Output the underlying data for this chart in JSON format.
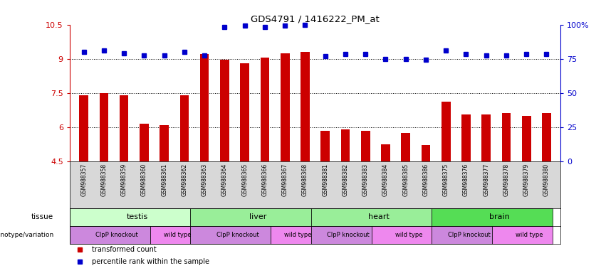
{
  "title": "GDS4791 / 1416222_PM_at",
  "samples": [
    "GSM988357",
    "GSM988358",
    "GSM988359",
    "GSM988360",
    "GSM988361",
    "GSM988362",
    "GSM988363",
    "GSM988364",
    "GSM988365",
    "GSM988366",
    "GSM988367",
    "GSM988368",
    "GSM988381",
    "GSM988382",
    "GSM988383",
    "GSM988384",
    "GSM988385",
    "GSM988386",
    "GSM988375",
    "GSM988376",
    "GSM988377",
    "GSM988378",
    "GSM988379",
    "GSM988380"
  ],
  "bar_values": [
    7.4,
    7.5,
    7.4,
    6.15,
    6.1,
    7.4,
    9.2,
    8.95,
    8.8,
    9.05,
    9.25,
    9.3,
    5.85,
    5.9,
    5.85,
    5.25,
    5.75,
    5.2,
    7.1,
    6.55,
    6.55,
    6.6,
    6.5,
    6.6
  ],
  "percentile_values": [
    9.3,
    9.35,
    9.25,
    9.15,
    9.15,
    9.3,
    9.15,
    10.4,
    10.45,
    10.4,
    10.45,
    10.5,
    9.1,
    9.2,
    9.2,
    9.0,
    9.0,
    8.95,
    9.35,
    9.2,
    9.15,
    9.15,
    9.2,
    9.2
  ],
  "ylim_left": [
    4.5,
    10.5
  ],
  "yticks_left": [
    4.5,
    6.0,
    7.5,
    9.0,
    10.5
  ],
  "ytick_labels_left": [
    "4.5",
    "6",
    "7.5",
    "9",
    "10.5"
  ],
  "ylim_right": [
    0,
    100
  ],
  "yticks_right": [
    0,
    25,
    50,
    75,
    100
  ],
  "ytick_labels_right": [
    "0",
    "25",
    "50",
    "75",
    "100%"
  ],
  "bar_color": "#cc0000",
  "dot_color": "#0000cc",
  "grid_lines": [
    6.0,
    7.5,
    9.0
  ],
  "tissue_data": [
    {
      "label": "testis",
      "start": 0,
      "end": 6,
      "color": "#ccffcc"
    },
    {
      "label": "liver",
      "start": 6,
      "end": 12,
      "color": "#99ee99"
    },
    {
      "label": "heart",
      "start": 12,
      "end": 18,
      "color": "#99ee99"
    },
    {
      "label": "brain",
      "start": 18,
      "end": 24,
      "color": "#55dd55"
    }
  ],
  "geno_data": [
    {
      "label": "ClpP knockout",
      "start": 0,
      "end": 4,
      "color": "#cc88dd"
    },
    {
      "label": "wild type",
      "start": 4,
      "end": 6,
      "color": "#ee88ee"
    },
    {
      "label": "ClpP knockout",
      "start": 6,
      "end": 10,
      "color": "#cc88dd"
    },
    {
      "label": "wild type",
      "start": 10,
      "end": 12,
      "color": "#ee88ee"
    },
    {
      "label": "ClpP knockout",
      "start": 12,
      "end": 15,
      "color": "#cc88dd"
    },
    {
      "label": "wild type",
      "start": 15,
      "end": 18,
      "color": "#ee88ee"
    },
    {
      "label": "ClpP knockout",
      "start": 18,
      "end": 21,
      "color": "#cc88dd"
    },
    {
      "label": "wild type",
      "start": 21,
      "end": 24,
      "color": "#ee88ee"
    }
  ],
  "legend_items": [
    {
      "label": "transformed count",
      "color": "#cc0000"
    },
    {
      "label": "percentile rank within the sample",
      "color": "#0000cc"
    }
  ],
  "xticklabel_bg": "#d8d8d8"
}
